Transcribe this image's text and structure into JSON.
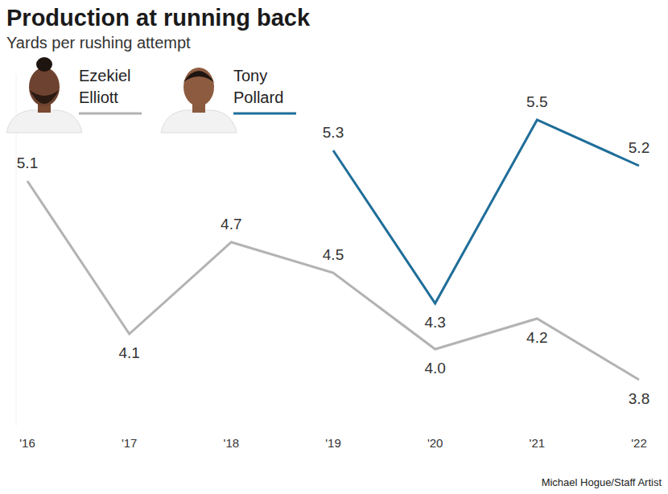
{
  "chart_data": {
    "type": "line",
    "title": "Production at running back",
    "subtitle": "Yards per rushing attempt",
    "source": "Michael Hogue/Staff Artist",
    "categories": [
      "'16",
      "'17",
      "'18",
      "'19",
      "'20",
      "'21",
      "'22"
    ],
    "series": [
      {
        "name": "Ezekiel Elliott",
        "color": "#b3b3b3",
        "values": [
          5.1,
          4.1,
          4.7,
          4.5,
          4.0,
          4.2,
          3.8
        ],
        "value_labels": [
          "5.1",
          "4.1",
          "4.7",
          "4.5",
          "4.0",
          "4.2",
          "3.8"
        ]
      },
      {
        "name": "Tony Pollard",
        "color": "#1f6e9a",
        "values": [
          null,
          null,
          null,
          5.3,
          4.3,
          5.5,
          5.2
        ],
        "value_labels": [
          null,
          null,
          null,
          "5.3",
          "4.3",
          "5.5",
          "5.2"
        ]
      }
    ],
    "ylim": [
      3.5,
      5.8
    ],
    "yticks": [],
    "tick_labels": "x",
    "grid": false,
    "data_labels": true
  }
}
